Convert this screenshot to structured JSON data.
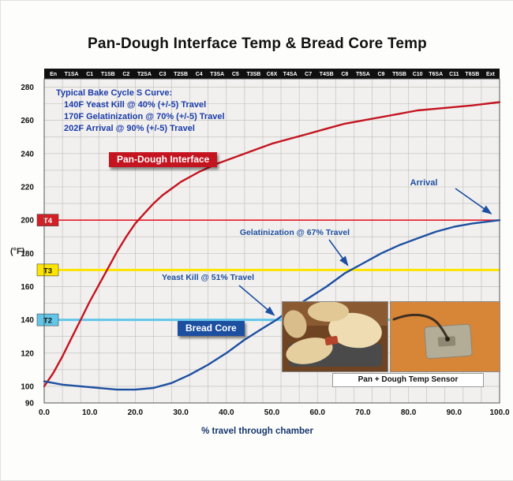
{
  "title": "Pan-Dough Interface Temp & Bread Core Temp",
  "note": {
    "lines": [
      "Typical Bake Cycle S Curve:",
      "140F Yeast Kill @ 40% (+/-5) Travel",
      "170F Gelatinization @ 70% (+/-5) Travel",
      "202F Arrival @ 90% (+/-5) Travel"
    ]
  },
  "chart_data": {
    "type": "line",
    "title": "Pan-Dough Interface Temp & Bread Core Temp",
    "xlabel": "% travel through chamber",
    "ylabel": "(°F)",
    "xlim": [
      0,
      100
    ],
    "ylim": [
      90,
      285
    ],
    "grid": true,
    "x_ticks": [
      "0.0",
      "10.0",
      "20.0",
      "30.0",
      "40.0",
      "50.0",
      "60.0",
      "70.0",
      "80.0",
      "90.0",
      "100.0"
    ],
    "y_ticks": [
      280,
      260,
      240,
      220,
      200,
      180,
      160,
      140,
      120,
      100,
      90
    ],
    "zones": [
      "En",
      "T1SA",
      "C1",
      "T1SB",
      "C2",
      "T2SA",
      "C3",
      "T2SB",
      "C4",
      "T3SA",
      "C5",
      "T3SB",
      "C6X",
      "T4SA",
      "C7",
      "T4SB",
      "C8",
      "T5SA",
      "C9",
      "T5SB",
      "C10",
      "T6SA",
      "C11",
      "T6SB",
      "Ext"
    ],
    "colors": {
      "plot_bg": "#f1f0ee",
      "grid": "#bdbcb8",
      "pan_dough": "#c41420",
      "bread_core": "#1d4fa1",
      "zone_band": "#101010",
      "annotation": "#1d4fa1"
    },
    "series": [
      {
        "name": "Pan-Dough Interface",
        "color": "#c41420",
        "x": [
          0,
          2,
          4,
          6,
          8,
          10,
          12,
          14,
          16,
          18,
          20,
          22,
          24,
          26,
          28,
          30,
          34,
          38,
          42,
          46,
          50,
          54,
          58,
          62,
          66,
          70,
          74,
          78,
          82,
          86,
          90,
          94,
          100
        ],
        "y": [
          100,
          108,
          118,
          129,
          140,
          151,
          161,
          171,
          181,
          190,
          198,
          204,
          210,
          215,
          219,
          223,
          229,
          234,
          238,
          242,
          246,
          249,
          252,
          255,
          258,
          260,
          262,
          264,
          266,
          267,
          268,
          269,
          271
        ]
      },
      {
        "name": "Bread Core",
        "color": "#1d4fa1",
        "x": [
          0,
          4,
          8,
          12,
          16,
          20,
          24,
          28,
          32,
          36,
          40,
          44,
          48,
          51,
          54,
          58,
          62,
          66,
          70,
          74,
          78,
          82,
          86,
          90,
          94,
          100
        ],
        "y": [
          103,
          101,
          100,
          99,
          98,
          98,
          99,
          102,
          107,
          113,
          120,
          128,
          135,
          140,
          146,
          153,
          160,
          168,
          174,
          180,
          185,
          189,
          193,
          196,
          198,
          200
        ]
      }
    ],
    "reference_lines": [
      {
        "label": "T4",
        "value": 200,
        "color": "#e8192c",
        "width": 1.6,
        "label_bg": "#d51f26",
        "label_fg": "#ffffff"
      },
      {
        "label": "T3",
        "value": 170,
        "color": "#ffe400",
        "width": 3,
        "label_bg": "#ffe400",
        "label_fg": "#111111"
      },
      {
        "label": "T2",
        "value": 140,
        "color": "#62c6e9",
        "width": 3,
        "label_bg": "#62c6e9",
        "label_fg": "#111111"
      }
    ],
    "annotations": {
      "arrival": {
        "text": "Arrival",
        "target_x": 99,
        "target_y": 202
      },
      "gelatinization": {
        "text": "Gelatinization @ 67% Travel",
        "target_x": 67,
        "target_y": 170
      },
      "yeast_kill": {
        "text": "Yeast Kill @ 51% Travel",
        "target_x": 51,
        "target_y": 140
      }
    },
    "photo_caption": "Pan + Dough Temp Sensor"
  }
}
